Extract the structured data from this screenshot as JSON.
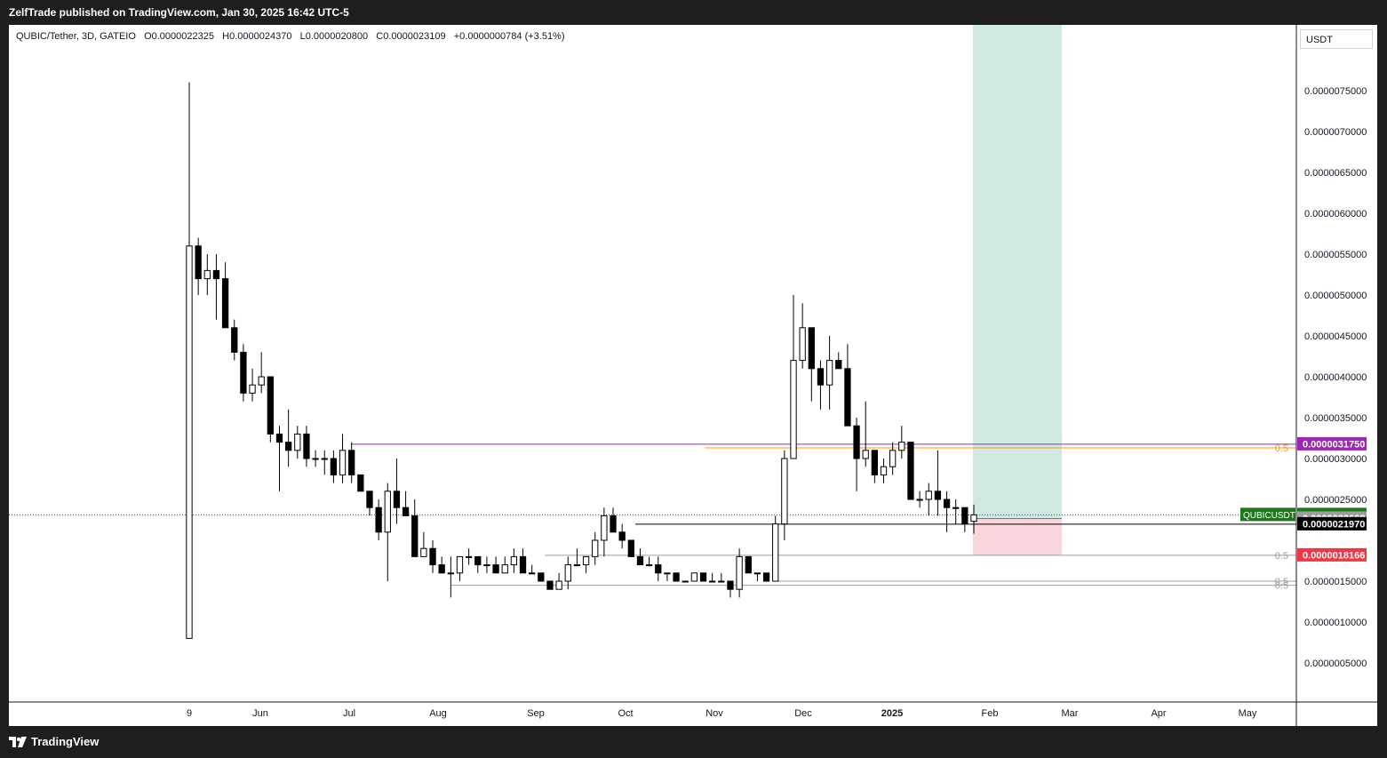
{
  "header": {
    "published": "ZelfTrade published on TradingView.com, Jan 30, 2025 16:42 UTC-5"
  },
  "legend": {
    "symbol": "QUBIC/Tether, 3D, GATEIO",
    "open": "O0.0000022325",
    "high": "H0.0000024370",
    "low": "L0.0000020800",
    "close": "C0.0000023109",
    "change": "+0.0000000784 (+3.51%)"
  },
  "currency_button": "USDT",
  "footer": {
    "brand": "TradingView"
  },
  "colors": {
    "bull": "#ffffff",
    "bear": "#000000",
    "purple": "#9c27b0",
    "orange": "#ff9800",
    "green_label": "#1b7a17",
    "gray_label": "#9e9e9e",
    "red_label": "#f23645",
    "target_zone": "#cfeae3",
    "stop_zone": "#f9d6dc"
  },
  "price_axis": {
    "ticks": [
      "0.0000075000",
      "0.0000070000",
      "0.0000065000",
      "0.0000060000",
      "0.0000055000",
      "0.0000050000",
      "0.0000045000",
      "0.0000040000",
      "0.0000035000",
      "0.0000030000",
      "0.0000025000",
      "0.0000015000",
      "0.0000010000",
      "0.0000005000"
    ]
  },
  "time_axis": {
    "labels": [
      "9",
      "Jun",
      "Jul",
      "Aug",
      "Sep",
      "Oct",
      "Nov",
      "Dec",
      "2025",
      "Feb",
      "Mar",
      "Apr",
      "May"
    ]
  },
  "price_labels": [
    {
      "text": "0.0000031750",
      "bg": "#9c27b0",
      "color": "#ffffff",
      "price": 3.175e-06
    },
    {
      "text": "0.0000023109",
      "bg": "#1b7a17",
      "color": "#ffffff",
      "price": 2.3109e-06
    },
    {
      "text": "0.0000022668",
      "bg": "#9e9e9e",
      "color": "#ffffff",
      "price": 2.2668e-06
    },
    {
      "text": "0.0000021970",
      "bg": "#000000",
      "color": "#ffffff",
      "price": 2.197e-06
    },
    {
      "text": "0.0000018166",
      "bg": "#f23645",
      "color": "#ffffff",
      "price": 1.8166e-06
    }
  ],
  "symbol_tag": "QUBICUSDT",
  "fib_labels": [
    "0.5",
    "0.5",
    "0.5",
    "0.5"
  ],
  "chart_data": {
    "type": "candlestick",
    "title": "QUBIC/Tether, 3D, GATEIO",
    "ylim": [
      0,
      8.2e-06
    ],
    "candles": [
      {
        "o": 8e-07,
        "h": 7.6e-06,
        "l": 8e-07,
        "c": 5.6e-06
      },
      {
        "o": 5.6e-06,
        "h": 5.7e-06,
        "l": 5e-06,
        "c": 5.2e-06
      },
      {
        "o": 5.2e-06,
        "h": 5.5e-06,
        "l": 5e-06,
        "c": 5.3e-06
      },
      {
        "o": 5.3e-06,
        "h": 5.5e-06,
        "l": 4.7e-06,
        "c": 5.2e-06
      },
      {
        "o": 5.2e-06,
        "h": 5.4e-06,
        "l": 4.6e-06,
        "c": 4.6e-06
      },
      {
        "o": 4.6e-06,
        "h": 4.7e-06,
        "l": 4.2e-06,
        "c": 4.3e-06
      },
      {
        "o": 4.3e-06,
        "h": 4.4e-06,
        "l": 3.7e-06,
        "c": 3.8e-06
      },
      {
        "o": 3.8e-06,
        "h": 4.1e-06,
        "l": 3.7e-06,
        "c": 3.9e-06
      },
      {
        "o": 3.9e-06,
        "h": 4.3e-06,
        "l": 3.8e-06,
        "c": 4e-06
      },
      {
        "o": 4e-06,
        "h": 4e-06,
        "l": 3.2e-06,
        "c": 3.3e-06
      },
      {
        "o": 3.3e-06,
        "h": 3.4e-06,
        "l": 2.6e-06,
        "c": 3.2e-06
      },
      {
        "o": 3.2e-06,
        "h": 3.6e-06,
        "l": 2.9e-06,
        "c": 3.1e-06
      },
      {
        "o": 3.1e-06,
        "h": 3.4e-06,
        "l": 3e-06,
        "c": 3.3e-06
      },
      {
        "o": 3.3e-06,
        "h": 3.4e-06,
        "l": 2.9e-06,
        "c": 3e-06
      },
      {
        "o": 3e-06,
        "h": 3.1e-06,
        "l": 2.9e-06,
        "c": 3e-06
      },
      {
        "o": 3e-06,
        "h": 3.1e-06,
        "l": 2.8e-06,
        "c": 3e-06
      },
      {
        "o": 3e-06,
        "h": 3.1e-06,
        "l": 2.7e-06,
        "c": 2.8e-06
      },
      {
        "o": 2.8e-06,
        "h": 3.3e-06,
        "l": 2.7e-06,
        "c": 3.1e-06
      },
      {
        "o": 3.1e-06,
        "h": 3.2e-06,
        "l": 2.7e-06,
        "c": 2.8e-06
      },
      {
        "o": 2.8e-06,
        "h": 2.8e-06,
        "l": 2.6e-06,
        "c": 2.6e-06
      },
      {
        "o": 2.6e-06,
        "h": 2.6e-06,
        "l": 2.3e-06,
        "c": 2.4e-06
      },
      {
        "o": 2.4e-06,
        "h": 2.5e-06,
        "l": 2e-06,
        "c": 2.1e-06
      },
      {
        "o": 2.1e-06,
        "h": 2.7e-06,
        "l": 1.5e-06,
        "c": 2.6e-06
      },
      {
        "o": 2.6e-06,
        "h": 3e-06,
        "l": 2.2e-06,
        "c": 2.4e-06
      },
      {
        "o": 2.4e-06,
        "h": 2.6e-06,
        "l": 2.3e-06,
        "c": 2.3e-06
      },
      {
        "o": 2.3e-06,
        "h": 2.5e-06,
        "l": 1.8e-06,
        "c": 1.8e-06
      },
      {
        "o": 1.8e-06,
        "h": 2.1e-06,
        "l": 1.8e-06,
        "c": 1.9e-06
      },
      {
        "o": 1.9e-06,
        "h": 2e-06,
        "l": 1.6e-06,
        "c": 1.7e-06
      },
      {
        "o": 1.7e-06,
        "h": 1.8e-06,
        "l": 1.6e-06,
        "c": 1.6e-06
      },
      {
        "o": 1.6e-06,
        "h": 1.8e-06,
        "l": 1.3e-06,
        "c": 1.6e-06
      },
      {
        "o": 1.6e-06,
        "h": 1.8e-06,
        "l": 1.5e-06,
        "c": 1.8e-06
      },
      {
        "o": 1.8e-06,
        "h": 1.9e-06,
        "l": 1.7e-06,
        "c": 1.8e-06
      },
      {
        "o": 1.8e-06,
        "h": 1.8e-06,
        "l": 1.6e-06,
        "c": 1.7e-06
      },
      {
        "o": 1.7e-06,
        "h": 1.8e-06,
        "l": 1.6e-06,
        "c": 1.7e-06
      },
      {
        "o": 1.7e-06,
        "h": 1.8e-06,
        "l": 1.6e-06,
        "c": 1.6e-06
      },
      {
        "o": 1.6e-06,
        "h": 1.8e-06,
        "l": 1.6e-06,
        "c": 1.7e-06
      },
      {
        "o": 1.7e-06,
        "h": 1.9e-06,
        "l": 1.6e-06,
        "c": 1.8e-06
      },
      {
        "o": 1.8e-06,
        "h": 1.9e-06,
        "l": 1.6e-06,
        "c": 1.6e-06
      },
      {
        "o": 1.6e-06,
        "h": 1.7e-06,
        "l": 1.6e-06,
        "c": 1.6e-06
      },
      {
        "o": 1.6e-06,
        "h": 1.6e-06,
        "l": 1.5e-06,
        "c": 1.5e-06
      },
      {
        "o": 1.5e-06,
        "h": 1.5e-06,
        "l": 1.4e-06,
        "c": 1.4e-06
      },
      {
        "o": 1.4e-06,
        "h": 1.6e-06,
        "l": 1.4e-06,
        "c": 1.5e-06
      },
      {
        "o": 1.5e-06,
        "h": 1.8e-06,
        "l": 1.4e-06,
        "c": 1.7e-06
      },
      {
        "o": 1.7e-06,
        "h": 1.9e-06,
        "l": 1.7e-06,
        "c": 1.7e-06
      },
      {
        "o": 1.7e-06,
        "h": 1.8e-06,
        "l": 1.6e-06,
        "c": 1.8e-06
      },
      {
        "o": 1.8e-06,
        "h": 2.1e-06,
        "l": 1.7e-06,
        "c": 2e-06
      },
      {
        "o": 2e-06,
        "h": 2.4e-06,
        "l": 1.8e-06,
        "c": 2.3e-06
      },
      {
        "o": 2.3e-06,
        "h": 2.4e-06,
        "l": 2.1e-06,
        "c": 2.1e-06
      },
      {
        "o": 2.1e-06,
        "h": 2.2e-06,
        "l": 1.9e-06,
        "c": 2e-06
      },
      {
        "o": 2e-06,
        "h": 2e-06,
        "l": 1.8e-06,
        "c": 1.8e-06
      },
      {
        "o": 1.8e-06,
        "h": 1.9e-06,
        "l": 1.7e-06,
        "c": 1.7e-06
      },
      {
        "o": 1.7e-06,
        "h": 1.8e-06,
        "l": 1.7e-06,
        "c": 1.7e-06
      },
      {
        "o": 1.7e-06,
        "h": 1.8e-06,
        "l": 1.5e-06,
        "c": 1.6e-06
      },
      {
        "o": 1.6e-06,
        "h": 1.6e-06,
        "l": 1.5e-06,
        "c": 1.6e-06
      },
      {
        "o": 1.6e-06,
        "h": 1.6e-06,
        "l": 1.5e-06,
        "c": 1.5e-06
      },
      {
        "o": 1.5e-06,
        "h": 1.5e-06,
        "l": 1.5e-06,
        "c": 1.5e-06
      },
      {
        "o": 1.5e-06,
        "h": 1.6e-06,
        "l": 1.5e-06,
        "c": 1.6e-06
      },
      {
        "o": 1.6e-06,
        "h": 1.6e-06,
        "l": 1.5e-06,
        "c": 1.5e-06
      },
      {
        "o": 1.5e-06,
        "h": 1.6e-06,
        "l": 1.5e-06,
        "c": 1.5e-06
      },
      {
        "o": 1.5e-06,
        "h": 1.6e-06,
        "l": 1.5e-06,
        "c": 1.5e-06
      },
      {
        "o": 1.5e-06,
        "h": 1.5e-06,
        "l": 1.3e-06,
        "c": 1.4e-06
      },
      {
        "o": 1.4e-06,
        "h": 1.9e-06,
        "l": 1.3e-06,
        "c": 1.8e-06
      },
      {
        "o": 1.8e-06,
        "h": 1.8e-06,
        "l": 1.6e-06,
        "c": 1.6e-06
      },
      {
        "o": 1.6e-06,
        "h": 1.6e-06,
        "l": 1.5e-06,
        "c": 1.6e-06
      },
      {
        "o": 1.6e-06,
        "h": 1.6e-06,
        "l": 1.5e-06,
        "c": 1.5e-06
      },
      {
        "o": 1.5e-06,
        "h": 2.3e-06,
        "l": 1.5e-06,
        "c": 2.2e-06
      },
      {
        "o": 2.2e-06,
        "h": 3.1e-06,
        "l": 2e-06,
        "c": 3e-06
      },
      {
        "o": 3e-06,
        "h": 5e-06,
        "l": 3e-06,
        "c": 4.2e-06
      },
      {
        "o": 4.2e-06,
        "h": 4.9e-06,
        "l": 4.1e-06,
        "c": 4.6e-06
      },
      {
        "o": 4.6e-06,
        "h": 4.6e-06,
        "l": 3.7e-06,
        "c": 4.1e-06
      },
      {
        "o": 4.1e-06,
        "h": 4.2e-06,
        "l": 3.6e-06,
        "c": 3.9e-06
      },
      {
        "o": 3.9e-06,
        "h": 4.5e-06,
        "l": 3.6e-06,
        "c": 4.2e-06
      },
      {
        "o": 4.2e-06,
        "h": 4.3e-06,
        "l": 4.1e-06,
        "c": 4.1e-06
      },
      {
        "o": 4.1e-06,
        "h": 4.4e-06,
        "l": 3.4e-06,
        "c": 3.4e-06
      },
      {
        "o": 3.4e-06,
        "h": 3.5e-06,
        "l": 2.6e-06,
        "c": 3e-06
      },
      {
        "o": 3e-06,
        "h": 3.7e-06,
        "l": 2.9e-06,
        "c": 3.1e-06
      },
      {
        "o": 3.1e-06,
        "h": 3.1e-06,
        "l": 2.7e-06,
        "c": 2.8e-06
      },
      {
        "o": 2.8e-06,
        "h": 3e-06,
        "l": 2.7e-06,
        "c": 2.9e-06
      },
      {
        "o": 2.9e-06,
        "h": 3.2e-06,
        "l": 2.8e-06,
        "c": 3.1e-06
      },
      {
        "o": 3.1e-06,
        "h": 3.4e-06,
        "l": 3e-06,
        "c": 3.2e-06
      },
      {
        "o": 3.2e-06,
        "h": 3.2e-06,
        "l": 2.5e-06,
        "c": 2.5e-06
      },
      {
        "o": 2.5e-06,
        "h": 2.6e-06,
        "l": 2.4e-06,
        "c": 2.5e-06
      },
      {
        "o": 2.5e-06,
        "h": 2.7e-06,
        "l": 2.3e-06,
        "c": 2.6e-06
      },
      {
        "o": 2.6e-06,
        "h": 3.1e-06,
        "l": 2.3e-06,
        "c": 2.5e-06
      },
      {
        "o": 2.5e-06,
        "h": 2.6e-06,
        "l": 2.1e-06,
        "c": 2.4e-06
      },
      {
        "o": 2.4e-06,
        "h": 2.5e-06,
        "l": 2.2e-06,
        "c": 2.4e-06
      },
      {
        "o": 2.4e-06,
        "h": 2.4e-06,
        "l": 2.1e-06,
        "c": 2.2e-06
      },
      {
        "o": 2.2325e-06,
        "h": 2.437e-06,
        "l": 2.08e-06,
        "c": 2.3109e-06
      }
    ],
    "horizontal_levels": [
      {
        "price": 3.175e-06,
        "color": "#9c27b0"
      },
      {
        "price": 3.13e-06,
        "color": "#ff9800"
      },
      {
        "price": 2.197e-06,
        "color": "#000000"
      },
      {
        "price": 1.8166e-06,
        "color": "#9e9e9e"
      },
      {
        "price": 1.5e-06,
        "color": "#9e9e9e"
      },
      {
        "price": 1.45e-06,
        "color": "#9e9e9e"
      }
    ],
    "position": {
      "entry": 2.2668e-06,
      "target": 8.2e-06,
      "stop": 1.8166e-06
    },
    "last_price": 2.3109e-06,
    "grid": false
  }
}
